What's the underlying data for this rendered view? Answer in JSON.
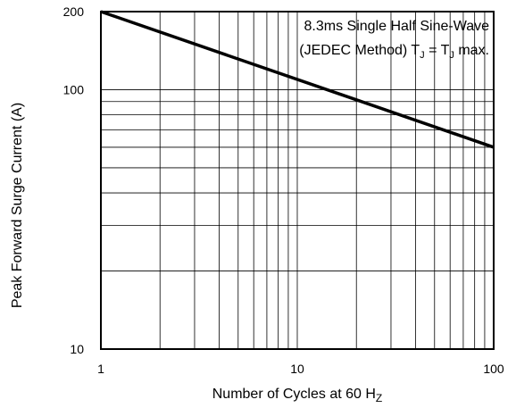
{
  "chart_data": {
    "type": "line",
    "xlabel": "Number of Cycles at 60 H",
    "xlabel_sub": "Z",
    "ylabel": "Peak Forward Surge Current (A)",
    "xscale": "log",
    "yscale": "log",
    "xlim": [
      1,
      100
    ],
    "ylim": [
      10,
      200
    ],
    "x_ticks": [
      {
        "value": 1,
        "label": "1"
      },
      {
        "value": 10,
        "label": "10"
      },
      {
        "value": 100,
        "label": "100"
      }
    ],
    "y_ticks": [
      {
        "value": 10,
        "label": "10"
      },
      {
        "value": 100,
        "label": "100"
      },
      {
        "value": 200,
        "label": "200"
      }
    ],
    "grid": true,
    "annotation": {
      "line1": "8.3ms Single Half Sine-Wave",
      "line2_prefix": "(JEDEC Method) T",
      "line2_sub1": "J",
      "line2_mid": " = T",
      "line2_sub2": "J",
      "line2_suffix": " max."
    },
    "series": [
      {
        "x": [
          1,
          100
        ],
        "y": [
          200,
          60
        ],
        "color": "#000000"
      }
    ]
  }
}
